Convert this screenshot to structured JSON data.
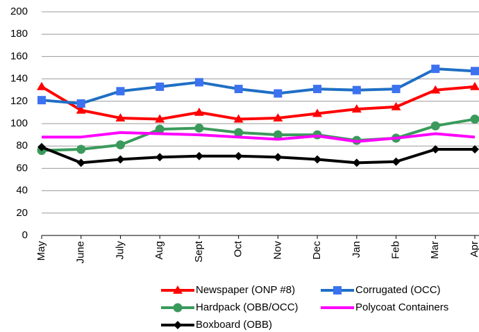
{
  "chart_data": {
    "type": "line",
    "categories": [
      "May",
      "June",
      "July",
      "Aug",
      "Sept",
      "Oct",
      "Nov",
      "Dec",
      "Jan",
      "Feb",
      "Mar",
      "Apr"
    ],
    "series": [
      {
        "name": "Newspaper (ONP #8)",
        "color": "#ff0000",
        "marker": "triangle",
        "values": [
          133,
          112,
          105,
          104,
          110,
          104,
          105,
          109,
          113,
          115,
          130,
          133
        ]
      },
      {
        "name": "Corrugated (OCC)",
        "color": "#1f6fc4",
        "marker": "square",
        "values": [
          121,
          118,
          129,
          133,
          137,
          131,
          127,
          131,
          130,
          131,
          149,
          147
        ]
      },
      {
        "name": "Hardpack (OBB/OCC)",
        "color": "#3a9a5b",
        "marker": "circle",
        "values": [
          76,
          77,
          81,
          95,
          96,
          92,
          90,
          90,
          85,
          87,
          98,
          104
        ]
      },
      {
        "name": "Polycoat Containers",
        "color": "#ff00ff",
        "marker": "none",
        "values": [
          88,
          88,
          92,
          91,
          90,
          88,
          86,
          89,
          84,
          87,
          91,
          88
        ]
      },
      {
        "name": "Boxboard (OBB)",
        "color": "#000000",
        "marker": "diamond",
        "values": [
          79,
          65,
          68,
          70,
          71,
          71,
          70,
          68,
          65,
          66,
          77,
          77
        ]
      }
    ],
    "ylim": [
      0,
      200
    ],
    "yticks": [
      0,
      20,
      40,
      60,
      80,
      100,
      120,
      140,
      160,
      180,
      200
    ],
    "grid": true,
    "legend": "bottom"
  }
}
